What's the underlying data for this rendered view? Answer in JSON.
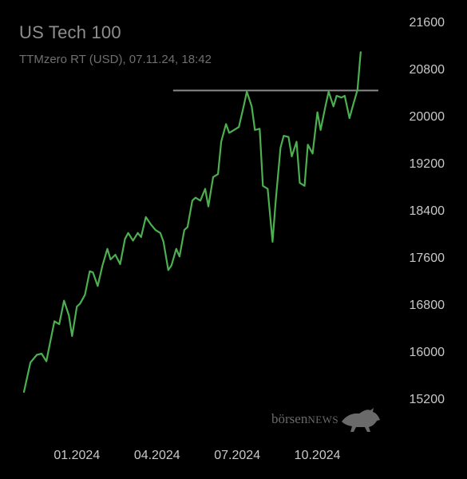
{
  "header": {
    "title": "US Tech 100",
    "subtitle": "TTMzero RT (USD), 07.11.24, 18:42"
  },
  "watermark": {
    "brand_lower": "börsen",
    "brand_caps": "NEWS",
    "icon": "bull-icon"
  },
  "colors": {
    "background": "#000000",
    "line": "#4caf50",
    "resistance": "#8a8a8a"
  },
  "chart_data": {
    "type": "line",
    "title": "US Tech 100",
    "subtitle": "TTMzero RT (USD), 07.11.24, 18:42",
    "ylim": [
      15200,
      21600
    ],
    "yticks": [
      "21600",
      "20800",
      "20000",
      "19200",
      "18400",
      "17600",
      "16800",
      "16000",
      "15200"
    ],
    "xticks": [
      "01.2024",
      "04.2024",
      "07.2024",
      "10.2024"
    ],
    "xtick_positions": [
      2024.0,
      2024.25,
      2024.5,
      2024.75
    ],
    "xlim": [
      2023.82,
      2024.98
    ],
    "grid": false,
    "resistance_line": {
      "value": 20470,
      "x_start": 2024.3,
      "x_end": 2024.94
    },
    "series": [
      {
        "x": [
          2023.835,
          2023.855,
          2023.875,
          2023.89,
          2023.905,
          2023.915,
          2023.93,
          2023.945,
          2023.96,
          2023.975,
          2023.985,
          2024.0,
          2024.01,
          2024.025,
          2024.04,
          2024.05,
          2024.065,
          2024.08,
          2024.095,
          2024.105,
          2024.12,
          2024.135,
          2024.15,
          2024.16,
          2024.175,
          2024.19,
          2024.2,
          2024.215,
          2024.23,
          2024.245,
          2024.26,
          2024.27,
          2024.285,
          2024.295,
          2024.31,
          2024.32,
          2024.335,
          2024.345,
          2024.36,
          2024.37,
          2024.385,
          2024.4,
          2024.41,
          2024.425,
          2024.44,
          2024.45,
          2024.465,
          2024.475,
          2024.49,
          2024.505,
          2024.52,
          2024.53,
          2024.545,
          2024.555,
          2024.57,
          2024.58,
          2024.595,
          2024.61,
          2024.62,
          2024.635,
          2024.645,
          2024.66,
          2024.67,
          2024.685,
          2024.695,
          2024.71,
          2024.72,
          2024.735,
          2024.75,
          2024.76,
          2024.775,
          2024.785,
          2024.8,
          2024.81,
          2024.825,
          2024.835,
          2024.85,
          2024.86,
          2024.875,
          2024.885
        ],
        "values": [
          15350,
          15850,
          15980,
          16000,
          15870,
          16150,
          16550,
          16500,
          16900,
          16650,
          16300,
          16800,
          16850,
          17000,
          17400,
          17380,
          17150,
          17500,
          17780,
          17600,
          17680,
          17520,
          17950,
          18050,
          17920,
          18050,
          17980,
          18320,
          18200,
          18100,
          18050,
          17900,
          17420,
          17500,
          17780,
          17650,
          18100,
          18150,
          18600,
          18650,
          18600,
          18800,
          18500,
          19000,
          19050,
          19600,
          19900,
          19750,
          19800,
          19850,
          20200,
          20450,
          20200,
          19800,
          19820,
          18850,
          18800,
          17900,
          18600,
          19500,
          19700,
          19680,
          19350,
          19600,
          18900,
          18850,
          19550,
          19400,
          20100,
          19800,
          20200,
          20450,
          20200,
          20380,
          20350,
          20380,
          20000,
          20200,
          20480,
          21120
        ]
      }
    ]
  }
}
